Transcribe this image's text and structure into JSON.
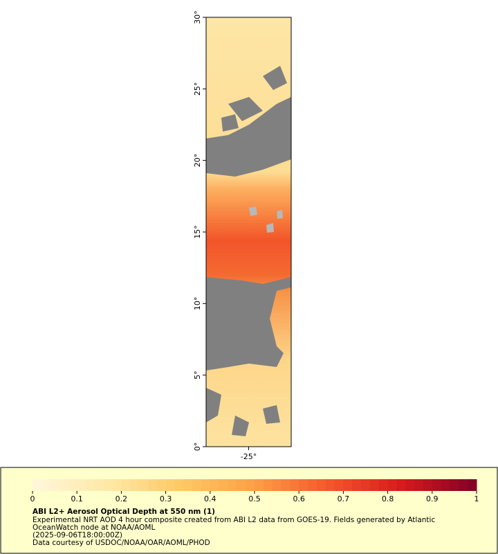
{
  "map": {
    "ylim": [
      0,
      30
    ],
    "yticks": [
      {
        "value": 0,
        "label": "0°"
      },
      {
        "value": 5,
        "label": "5°"
      },
      {
        "value": 10,
        "label": "10°"
      },
      {
        "value": 15,
        "label": "15°"
      },
      {
        "value": 20,
        "label": "20°"
      },
      {
        "value": 25,
        "label": "25°"
      },
      {
        "value": 30,
        "label": "30°"
      }
    ],
    "xlim": [
      -28,
      -22
    ],
    "xticks": [
      {
        "value": -25,
        "label": "-25°"
      }
    ]
  },
  "colorbar": {
    "range": [
      0,
      1
    ],
    "ticks": [
      0,
      0.1,
      0.2,
      0.3,
      0.4,
      0.5,
      0.6,
      0.7,
      0.8,
      0.9,
      1
    ],
    "colors": [
      "#fff7dc",
      "#ffe9a8",
      "#fec965",
      "#fd9f46",
      "#f5572b",
      "#d7191c",
      "#800026"
    ]
  },
  "legend": {
    "title": "ABI L2+ Aerosol Optical Depth at 550 nm (1)",
    "lines": [
      "Experimental NRT AOD 4 hour composite created from ABI L2 data from GOES-19. Fields generated by Atlantic",
      "OceanWatch node at NOAA/AOML",
      "(2025-09-06T18:00:00Z)",
      "Data courtesy of USDOC/NOAA/OAR/AOML/PHOD"
    ]
  }
}
